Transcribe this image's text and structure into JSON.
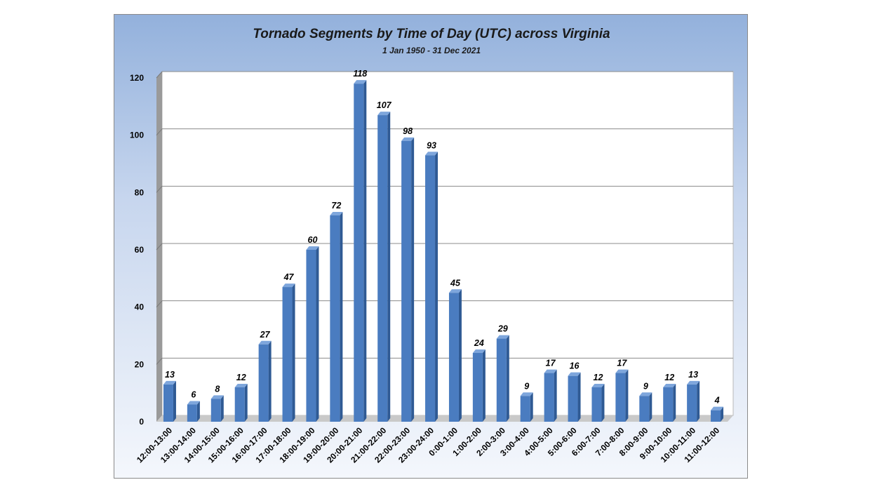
{
  "chart_data": {
    "type": "bar",
    "title": "Tornado Segments by Time of Day (UTC) across Virginia",
    "subtitle": "1 Jan 1950 - 31 Dec 2021",
    "xlabel": "",
    "ylabel": "",
    "ylim": [
      0,
      120
    ],
    "yticks": [
      "0",
      "20",
      "40",
      "60",
      "80",
      "100",
      "120"
    ],
    "grid": true,
    "categories": [
      "12:00-13:00",
      "13:00-14:00",
      "14:00-15:00",
      "15:00-16:00",
      "16:00-17:00",
      "17:00-18:00",
      "18:00-19:00",
      "19:00-20:00",
      "20:00-21:00",
      "21:00-22:00",
      "22:00-23:00",
      "23:00-24:00",
      "0:00-1:00",
      "1:00-2:00",
      "2:00-3:00",
      "3:00-4:00",
      "4:00-5:00",
      "5:00-6:00",
      "6:00-7:00",
      "7:00-8:00",
      "8:00-9:00",
      "9:00-10:00",
      "10:00-11:00",
      "11:00-12:00"
    ],
    "values": [
      13,
      6,
      8,
      12,
      27,
      47,
      60,
      72,
      118,
      107,
      98,
      93,
      45,
      24,
      29,
      9,
      17,
      16,
      12,
      17,
      9,
      12,
      13,
      4
    ],
    "data_labels": [
      "13",
      "6",
      "8",
      "12",
      "27",
      "47",
      "60",
      "72",
      "118",
      "107",
      "98",
      "93",
      "45",
      "24",
      "29",
      "9",
      "17",
      "16",
      "12",
      "17",
      "9",
      "12",
      "13",
      "4"
    ],
    "colors": {
      "bar_front": "#4a7cc0",
      "bar_side": "#2f5a94",
      "bar_top": "#7ea6dc"
    }
  }
}
